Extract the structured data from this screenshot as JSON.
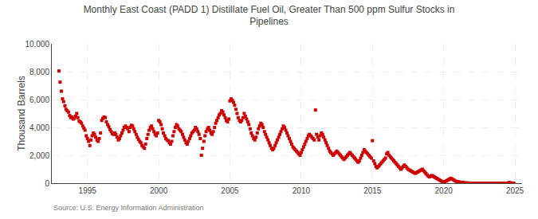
{
  "chart_data": {
    "type": "scatter",
    "title": "Monthly East Coast (PADD 1) Distillate Fuel Oil, Greater Than 500 ppm Sulfur Stocks in\nPipelines",
    "ylabel": "Thousand Barrels",
    "annotations": [
      "Source: U.S. Energy Information Administration"
    ],
    "color": "#cc0000",
    "marker": "square",
    "grid": true,
    "xlim": [
      1992.5,
      2025.5
    ],
    "xticks": [
      1995,
      2000,
      2005,
      2010,
      2015,
      2020,
      2025
    ],
    "ylim": [
      0,
      10000
    ],
    "yticks": [
      0,
      {
        "value": 2000,
        "label": "2,000"
      },
      {
        "value": 4000,
        "label": "4,000"
      },
      {
        "value": 6000,
        "label": "6,000"
      },
      {
        "value": 8000,
        "label": "8,000"
      },
      {
        "value": 10000,
        "label": "10,000"
      }
    ],
    "x": [
      1993.0,
      1993.08,
      1993.17,
      1993.25,
      1993.33,
      1993.42,
      1993.5,
      1993.58,
      1993.67,
      1993.75,
      1993.83,
      1993.92,
      1994.0,
      1994.08,
      1994.17,
      1994.25,
      1994.33,
      1994.42,
      1994.5,
      1994.58,
      1994.67,
      1994.75,
      1994.83,
      1994.92,
      1995.0,
      1995.08,
      1995.17,
      1995.25,
      1995.33,
      1995.42,
      1995.5,
      1995.58,
      1995.67,
      1995.75,
      1995.83,
      1995.92,
      1996.0,
      1996.08,
      1996.17,
      1996.25,
      1996.33,
      1996.42,
      1996.5,
      1996.58,
      1996.67,
      1996.75,
      1996.83,
      1996.92,
      1997.0,
      1997.08,
      1997.17,
      1997.25,
      1997.33,
      1997.42,
      1997.5,
      1997.58,
      1997.67,
      1997.75,
      1997.83,
      1997.92,
      1998.0,
      1998.08,
      1998.17,
      1998.25,
      1998.33,
      1998.42,
      1998.5,
      1998.58,
      1998.67,
      1998.75,
      1998.83,
      1998.92,
      1999.0,
      1999.08,
      1999.17,
      1999.25,
      1999.33,
      1999.42,
      1999.5,
      1999.58,
      1999.67,
      1999.75,
      1999.83,
      1999.92,
      2000.0,
      2000.08,
      2000.17,
      2000.25,
      2000.33,
      2000.42,
      2000.5,
      2000.58,
      2000.67,
      2000.75,
      2000.83,
      2000.92,
      2001.0,
      2001.08,
      2001.17,
      2001.25,
      2001.33,
      2001.42,
      2001.5,
      2001.58,
      2001.67,
      2001.75,
      2001.83,
      2001.92,
      2002.0,
      2002.08,
      2002.17,
      2002.25,
      2002.33,
      2002.42,
      2002.5,
      2002.58,
      2002.67,
      2002.75,
      2002.83,
      2002.92,
      2003.0,
      2003.08,
      2003.17,
      2003.25,
      2003.33,
      2003.42,
      2003.5,
      2003.58,
      2003.67,
      2003.75,
      2003.83,
      2003.92,
      2004.0,
      2004.08,
      2004.17,
      2004.25,
      2004.33,
      2004.42,
      2004.5,
      2004.58,
      2004.67,
      2004.75,
      2004.83,
      2004.92,
      2005.0,
      2005.08,
      2005.17,
      2005.25,
      2005.33,
      2005.42,
      2005.5,
      2005.58,
      2005.67,
      2005.75,
      2005.83,
      2005.92,
      2006.0,
      2006.08,
      2006.17,
      2006.25,
      2006.33,
      2006.42,
      2006.5,
      2006.58,
      2006.67,
      2006.75,
      2006.83,
      2006.92,
      2007.0,
      2007.08,
      2007.17,
      2007.25,
      2007.33,
      2007.42,
      2007.5,
      2007.58,
      2007.67,
      2007.75,
      2007.83,
      2007.92,
      2008.0,
      2008.08,
      2008.17,
      2008.25,
      2008.33,
      2008.42,
      2008.5,
      2008.58,
      2008.67,
      2008.75,
      2008.83,
      2008.92,
      2009.0,
      2009.08,
      2009.17,
      2009.25,
      2009.33,
      2009.42,
      2009.5,
      2009.58,
      2009.67,
      2009.75,
      2009.83,
      2009.92,
      2010.0,
      2010.08,
      2010.17,
      2010.25,
      2010.33,
      2010.42,
      2010.5,
      2010.58,
      2010.67,
      2010.75,
      2010.83,
      2010.92,
      2011.0,
      2011.08,
      2011.17,
      2011.25,
      2011.33,
      2011.42,
      2011.5,
      2011.58,
      2011.67,
      2011.75,
      2011.83,
      2011.92,
      2012.0,
      2012.08,
      2012.17,
      2012.25,
      2012.33,
      2012.42,
      2012.5,
      2012.58,
      2012.67,
      2012.75,
      2012.83,
      2012.92,
      2013.0,
      2013.08,
      2013.17,
      2013.25,
      2013.33,
      2013.42,
      2013.5,
      2013.58,
      2013.67,
      2013.75,
      2013.83,
      2013.92,
      2014.0,
      2014.08,
      2014.17,
      2014.25,
      2014.33,
      2014.42,
      2014.5,
      2014.58,
      2014.67,
      2014.75,
      2014.83,
      2014.92,
      2015.0,
      2015.08,
      2015.17,
      2015.25,
      2015.33,
      2015.42,
      2015.5,
      2015.58,
      2015.67,
      2015.75,
      2015.83,
      2015.92,
      2016.0,
      2016.08,
      2016.17,
      2016.25,
      2016.33,
      2016.42,
      2016.5,
      2016.58,
      2016.67,
      2016.75,
      2016.83,
      2016.92,
      2017.0,
      2017.08,
      2017.17,
      2017.25,
      2017.33,
      2017.42,
      2017.5,
      2017.58,
      2017.67,
      2017.75,
      2017.83,
      2017.92,
      2018.0,
      2018.08,
      2018.17,
      2018.25,
      2018.33,
      2018.42,
      2018.5,
      2018.58,
      2018.67,
      2018.75,
      2018.83,
      2018.92,
      2019.0,
      2019.08,
      2019.17,
      2019.25,
      2019.33,
      2019.42,
      2019.5,
      2019.58,
      2019.67,
      2019.75,
      2019.83,
      2019.92,
      2020.0,
      2020.08,
      2020.17,
      2020.25,
      2020.33,
      2020.42,
      2020.5,
      2020.58,
      2020.67,
      2020.75,
      2020.83,
      2020.92,
      2021.0,
      2021.08,
      2021.17,
      2021.25,
      2021.33,
      2021.42,
      2021.5,
      2021.58,
      2021.67,
      2021.75,
      2021.83,
      2021.92,
      2022.0,
      2022.08,
      2022.17,
      2022.25,
      2022.33,
      2022.42,
      2022.5,
      2022.58,
      2022.67,
      2022.75,
      2022.83,
      2022.92,
      2023.0,
      2023.08,
      2023.17,
      2023.25,
      2023.33,
      2023.42,
      2023.5,
      2023.58,
      2023.67,
      2023.75,
      2023.83,
      2023.92,
      2024.0,
      2024.08,
      2024.17,
      2024.25,
      2024.33,
      2024.42,
      2024.5,
      2024.58,
      2024.67,
      2024.75,
      2024.83,
      2024.92
    ],
    "values": [
      8050,
      7250,
      6600,
      6050,
      5850,
      5550,
      5300,
      5200,
      5100,
      4850,
      4700,
      4750,
      4600,
      4650,
      4800,
      5000,
      4700,
      4450,
      4400,
      4300,
      4100,
      3950,
      3800,
      3400,
      3200,
      3000,
      2700,
      3100,
      3400,
      3600,
      3500,
      3300,
      3100,
      3000,
      3200,
      3600,
      4500,
      4650,
      4750,
      4700,
      4400,
      4200,
      4050,
      3850,
      3700,
      3550,
      3500,
      3600,
      3500,
      3300,
      3100,
      3200,
      3400,
      3600,
      3800,
      4000,
      4100,
      4000,
      3900,
      3700,
      4000,
      4150,
      4100,
      3900,
      3700,
      3500,
      3300,
      3150,
      3000,
      2900,
      2700,
      2600,
      2500,
      2800,
      3200,
      3500,
      3800,
      4000,
      4100,
      3900,
      3700,
      3500,
      3400,
      3600,
      4500,
      4400,
      4200,
      3900,
      3600,
      3400,
      3200,
      3100,
      3050,
      2900,
      2800,
      3000,
      3400,
      3700,
      4000,
      4200,
      4100,
      3900,
      3800,
      3700,
      3500,
      3300,
      3100,
      2900,
      2800,
      3000,
      3200,
      3400,
      3600,
      3700,
      3800,
      4000,
      3900,
      3700,
      3500,
      3200,
      2000,
      2500,
      3000,
      3400,
      3700,
      3900,
      4000,
      3800,
      3600,
      3500,
      3700,
      4000,
      4300,
      4500,
      4700,
      4900,
      5000,
      5200,
      5100,
      4900,
      4700,
      4500,
      4400,
      4600,
      5900,
      6050,
      5950,
      5800,
      5600,
      5300,
      5000,
      4700,
      4500,
      4400,
      4500,
      4700,
      5000,
      4800,
      4600,
      4400,
      4200,
      3900,
      3600,
      3400,
      3200,
      3100,
      3300,
      3600,
      3900,
      4100,
      4300,
      4200,
      4000,
      3700,
      3500,
      3300,
      3100,
      2900,
      2700,
      2500,
      2400,
      2500,
      2700,
      2900,
      3100,
      3300,
      3500,
      3700,
      3900,
      4100,
      4000,
      3800,
      3600,
      3400,
      3200,
      3000,
      2800,
      2600,
      2500,
      2400,
      2300,
      2200,
      2100,
      2000,
      2200,
      2400,
      2600,
      2800,
      3000,
      3200,
      3400,
      3500,
      3400,
      3300,
      3200,
      3100,
      5250,
      3500,
      3300,
      3100,
      3400,
      3600,
      3500,
      3300,
      3100,
      2900,
      2700,
      2500,
      2300,
      2200,
      2100,
      2000,
      2100,
      2200,
      2300,
      2200,
      2100,
      2000,
      1900,
      1800,
      1700,
      1800,
      1900,
      2000,
      2100,
      2200,
      2100,
      2000,
      1900,
      1800,
      1700,
      1600,
      1500,
      1600,
      1800,
      2000,
      2200,
      2400,
      2300,
      2200,
      2100,
      2000,
      1900,
      1800,
      3050,
      1600,
      1400,
      1200,
      1100,
      1200,
      1300,
      1400,
      1500,
      1600,
      1700,
      1800,
      2100,
      2200,
      2000,
      1900,
      1800,
      1700,
      1600,
      1500,
      1400,
      1300,
      1200,
      1100,
      1000,
      1100,
      1200,
      1300,
      1200,
      1100,
      1000,
      950,
      900,
      850,
      800,
      750,
      700,
      750,
      800,
      850,
      900,
      950,
      1000,
      900,
      800,
      700,
      600,
      500,
      450,
      500,
      550,
      500,
      450,
      400,
      350,
      300,
      250,
      200,
      150,
      100,
      80,
      100,
      150,
      200,
      250,
      300,
      350,
      300,
      250,
      200,
      150,
      120,
      100,
      80,
      60,
      50,
      40,
      30,
      20,
      15,
      10,
      8,
      5,
      3,
      2,
      2,
      1,
      1,
      1,
      0,
      0,
      0,
      0,
      0,
      0,
      0,
      0,
      0,
      0,
      0,
      0,
      0,
      0,
      0,
      0,
      0,
      0,
      0,
      0,
      0,
      0,
      0,
      0,
      0,
      0,
      50,
      20,
      10,
      5,
      0
    ]
  }
}
